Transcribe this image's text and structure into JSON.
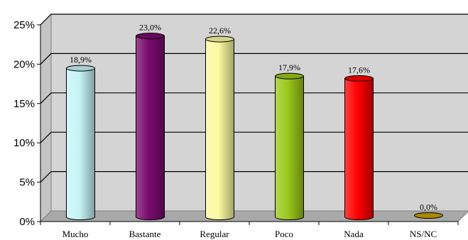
{
  "chart_data": {
    "type": "bar",
    "categories": [
      "Mucho",
      "Bastante",
      "Regular",
      "Poco",
      "Nada",
      "NS/NC"
    ],
    "values": [
      18.9,
      23.0,
      22.6,
      17.9,
      17.6,
      0.0
    ],
    "data_labels": [
      "18,9%",
      "23,0%",
      "22,6%",
      "17,9%",
      "17,6%",
      "0,0%"
    ],
    "colors": [
      "#c6f4f6",
      "#7a0a6e",
      "#fafaa0",
      "#9ac81a",
      "#ff0000",
      "#c8a000"
    ],
    "y_ticks": [
      0,
      5,
      10,
      15,
      20,
      25
    ],
    "y_tick_labels": [
      "0%",
      "5%",
      "10%",
      "15%",
      "20%",
      "25%"
    ],
    "ylim": [
      0,
      25
    ],
    "grid": true,
    "legend": "none",
    "style": "3d-cylinder"
  }
}
